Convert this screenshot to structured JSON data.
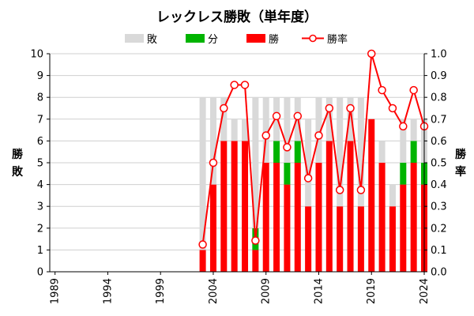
{
  "chart_data": {
    "type": "bar",
    "title": "レックレス勝敗（単年度）",
    "legend": [
      "敗",
      "分",
      "勝",
      "勝率"
    ],
    "colors": {
      "lose": "#d9d9d9",
      "draw": "#00b400",
      "win": "#ff0000",
      "rate": "#ff0000"
    },
    "x": [
      1989,
      1990,
      1991,
      1992,
      1993,
      1994,
      1995,
      1996,
      1997,
      1998,
      1999,
      2000,
      2001,
      2002,
      2003,
      2004,
      2005,
      2006,
      2007,
      2008,
      2009,
      2010,
      2011,
      2012,
      2013,
      2014,
      2015,
      2016,
      2017,
      2018,
      2019,
      2020,
      2021,
      2022,
      2023,
      2024
    ],
    "x_tick_labels": [
      "1989",
      "1994",
      "1999",
      "2004",
      "2009",
      "2014",
      "2019",
      "2024"
    ],
    "ylabel_left": "勝敗",
    "ylabel_right": "勝率",
    "ylim_left": [
      0,
      10
    ],
    "ylim_right": [
      0,
      1.0
    ],
    "y_ticks_left": [
      "0",
      "1",
      "2",
      "3",
      "4",
      "5",
      "6",
      "7",
      "8",
      "9",
      "10"
    ],
    "y_ticks_right": [
      "0.0",
      "0.1",
      "0.2",
      "0.3",
      "0.4",
      "0.5",
      "0.6",
      "0.7",
      "0.8",
      "0.9",
      "1.0"
    ],
    "grid": "horizontal",
    "legend_position": "top",
    "series": [
      {
        "name": "勝",
        "stack": "bottom",
        "values": [
          0,
          0,
          0,
          0,
          0,
          0,
          0,
          0,
          0,
          0,
          0,
          0,
          0,
          0,
          1,
          4,
          6,
          6,
          6,
          1,
          5,
          5,
          4,
          5,
          3,
          5,
          6,
          3,
          6,
          3,
          7,
          5,
          3,
          4,
          5,
          4
        ]
      },
      {
        "name": "分",
        "stack": "middle",
        "values": [
          0,
          0,
          0,
          0,
          0,
          0,
          0,
          0,
          0,
          0,
          0,
          0,
          0,
          0,
          0,
          0,
          0,
          0,
          0,
          1,
          0,
          1,
          1,
          1,
          0,
          0,
          0,
          0,
          0,
          0,
          0,
          0,
          0,
          1,
          1,
          1
        ]
      },
      {
        "name": "敗",
        "stack": "top",
        "values": [
          0,
          0,
          0,
          0,
          0,
          0,
          0,
          0,
          0,
          0,
          0,
          0,
          0,
          0,
          7,
          4,
          2,
          1,
          1,
          6,
          3,
          2,
          3,
          2,
          4,
          3,
          2,
          5,
          2,
          5,
          0,
          1,
          1,
          2,
          1,
          2
        ]
      },
      {
        "name": "勝率",
        "axis": "right",
        "type": "line",
        "values": [
          null,
          null,
          null,
          null,
          null,
          null,
          null,
          null,
          null,
          null,
          null,
          null,
          null,
          null,
          0.125,
          0.5,
          0.75,
          0.857,
          0.857,
          0.143,
          0.625,
          0.714,
          0.571,
          0.714,
          0.429,
          0.625,
          0.75,
          0.375,
          0.75,
          0.375,
          1.0,
          0.833,
          0.75,
          0.667,
          0.833,
          0.667
        ]
      }
    ]
  }
}
